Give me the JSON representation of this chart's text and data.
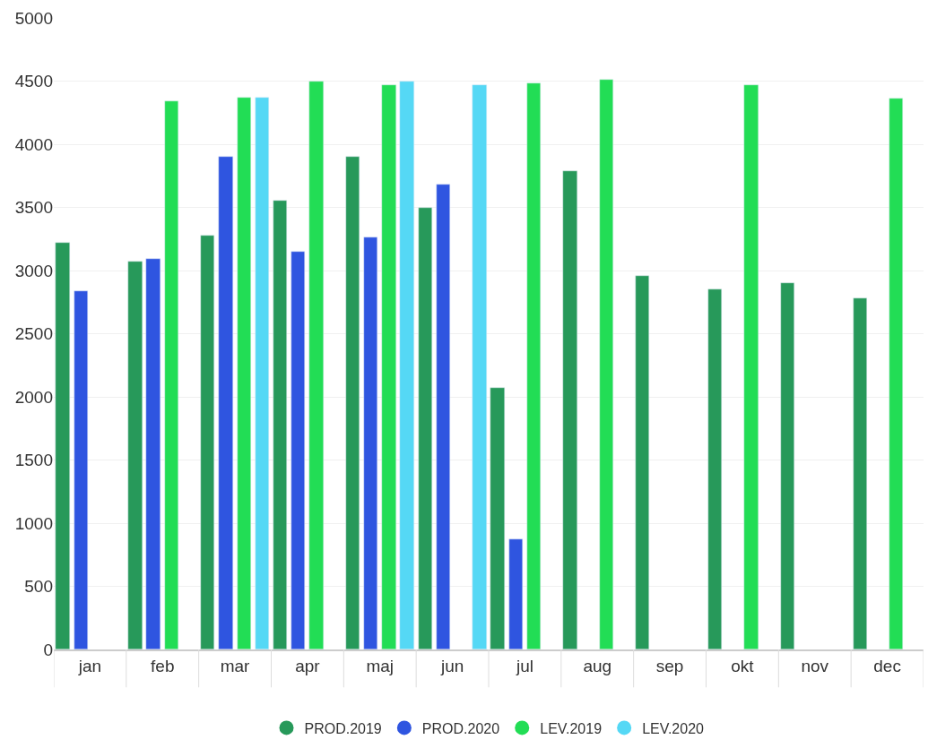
{
  "chart_data": {
    "type": "bar",
    "categories": [
      "jan",
      "feb",
      "mar",
      "apr",
      "maj",
      "jun",
      "jul",
      "aug",
      "sep",
      "okt",
      "nov",
      "dec"
    ],
    "series": [
      {
        "name": "PROD.2019",
        "color": "#27995a",
        "values": [
          3220,
          3070,
          3280,
          3550,
          3900,
          3500,
          2070,
          3790,
          2960,
          2850,
          2900,
          2780
        ]
      },
      {
        "name": "PROD.2020",
        "color": "#2f55e0",
        "values": [
          2840,
          3090,
          3900,
          3150,
          3260,
          3680,
          870,
          null,
          null,
          null,
          null,
          null
        ]
      },
      {
        "name": "LEV.2019",
        "color": "#22dd55",
        "values": [
          null,
          4340,
          4370,
          4500,
          4470,
          null,
          4480,
          4510,
          null,
          4470,
          null,
          4360
        ]
      },
      {
        "name": "LEV.2020",
        "color": "#55d8f5",
        "values": [
          null,
          null,
          4370,
          null,
          4500,
          4470,
          null,
          null,
          null,
          null,
          null,
          null
        ]
      }
    ],
    "ylim": [
      0,
      5000
    ],
    "yticks": [
      0,
      500,
      1000,
      1500,
      2000,
      2500,
      3000,
      3500,
      4000,
      4500,
      5000
    ],
    "grid": "y",
    "legend": "bottom",
    "marker": "circle"
  }
}
